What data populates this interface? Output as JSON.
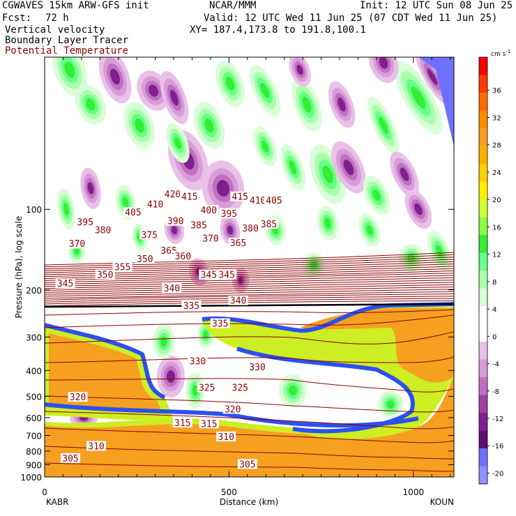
{
  "header": {
    "model": "CGWAVES 15km ARW-GFS init",
    "center": "NCAR/MMM",
    "init": "Init: 12 UTC Sun 08 Jun 25",
    "fcst_label": "Fcst:",
    "fcst_value": "72 h",
    "valid": "Valid: 12 UTC Wed 11 Jun 25 (07 CDT Wed 11 Jun 25)",
    "field1": "Vertical velocity",
    "field2": "Boundary Layer Tracer",
    "field3": "Potential Temperature",
    "xy": "XY= 187.4,173.8 to 191.8,100.1"
  },
  "colors": {
    "theta_line": "#8b0000",
    "orange_pbl": "#f5a020",
    "white": "#ffffff"
  },
  "chart_data": {
    "type": "heatmap",
    "xlabel": "Distance (km)",
    "ylabel": "Pressure (hPa), log scale",
    "xlim": [
      0,
      1110
    ],
    "ylim": [
      1000,
      27
    ],
    "y_scale": "log",
    "x_ticks": [
      "0",
      "500",
      "1000"
    ],
    "y_ticks": [
      "100",
      "200",
      "300",
      "400",
      "500",
      "600",
      "700",
      "800",
      "900",
      "1000"
    ],
    "left_station": "KABR",
    "right_station": "KOUN",
    "colorbar": {
      "unit": "cm s",
      "unit_exp": "-1",
      "labels": [
        "36",
        "32",
        "28",
        "24",
        "20",
        "16",
        "12",
        "8",
        "4",
        "0",
        "-4",
        "-8",
        "-12",
        "-16",
        "-20"
      ],
      "colors": [
        "#ff0000",
        "#ff3c00",
        "#ff6a00",
        "#ff8c00",
        "#f5a020",
        "#ffb000",
        "#ffd000",
        "#ffee00",
        "#ccff33",
        "#88ff44",
        "#33ee33",
        "#66ff88",
        "#aaffaa",
        "#d8ffd8",
        "#ffffff",
        "#ffffff",
        "#e8c0e8",
        "#d89cd8",
        "#c070c0",
        "#a040a0",
        "#802090",
        "#601070",
        "#7070ff",
        "#9090ff"
      ]
    },
    "theta_labels": [
      {
        "v": "420",
        "x": 347,
        "p": 88
      },
      {
        "v": "415",
        "x": 393,
        "p": 90
      },
      {
        "v": "415",
        "x": 530,
        "p": 90
      },
      {
        "v": "410",
        "x": 300,
        "p": 96
      },
      {
        "v": "410",
        "x": 578,
        "p": 93
      },
      {
        "v": "405",
        "x": 240,
        "p": 103
      },
      {
        "v": "405",
        "x": 622,
        "p": 93
      },
      {
        "v": "400",
        "x": 445,
        "p": 101
      },
      {
        "v": "395",
        "x": 110,
        "p": 112
      },
      {
        "v": "395",
        "x": 500,
        "p": 104
      },
      {
        "v": "390",
        "x": 355,
        "p": 111
      },
      {
        "v": "385",
        "x": 418,
        "p": 115
      },
      {
        "v": "385",
        "x": 608,
        "p": 114
      },
      {
        "v": "380",
        "x": 158,
        "p": 120
      },
      {
        "v": "380",
        "x": 558,
        "p": 118
      },
      {
        "v": "375",
        "x": 284,
        "p": 125
      },
      {
        "v": "370",
        "x": 88,
        "p": 135
      },
      {
        "v": "370",
        "x": 450,
        "p": 129
      },
      {
        "v": "365",
        "x": 337,
        "p": 143
      },
      {
        "v": "365",
        "x": 525,
        "p": 134
      },
      {
        "v": "360",
        "x": 375,
        "p": 150
      },
      {
        "v": "350",
        "x": 272,
        "p": 154
      },
      {
        "v": "355",
        "x": 211,
        "p": 165
      },
      {
        "v": "350",
        "x": 164,
        "p": 176
      },
      {
        "v": "345",
        "x": 56,
        "p": 190
      },
      {
        "v": "345",
        "x": 445,
        "p": 176
      },
      {
        "v": "345",
        "x": 494,
        "p": 176
      },
      {
        "v": "340",
        "x": 345,
        "p": 198
      },
      {
        "v": "340",
        "x": 525,
        "p": 220
      },
      {
        "v": "335",
        "x": 398,
        "p": 230
      },
      {
        "v": "335",
        "x": 476,
        "p": 268
      },
      {
        "v": "330",
        "x": 415,
        "p": 370
      },
      {
        "v": "330",
        "x": 577,
        "p": 390
      },
      {
        "v": "325",
        "x": 440,
        "p": 465
      },
      {
        "v": "325",
        "x": 530,
        "p": 465
      },
      {
        "v": "320",
        "x": 90,
        "p": 505
      },
      {
        "v": "320",
        "x": 510,
        "p": 560
      },
      {
        "v": "315",
        "x": 374,
        "p": 630
      },
      {
        "v": "315",
        "x": 446,
        "p": 635
      },
      {
        "v": "310",
        "x": 140,
        "p": 770
      },
      {
        "v": "310",
        "x": 492,
        "p": 710
      },
      {
        "v": "305",
        "x": 70,
        "p": 855
      },
      {
        "v": "305",
        "x": 550,
        "p": 900
      }
    ]
  }
}
